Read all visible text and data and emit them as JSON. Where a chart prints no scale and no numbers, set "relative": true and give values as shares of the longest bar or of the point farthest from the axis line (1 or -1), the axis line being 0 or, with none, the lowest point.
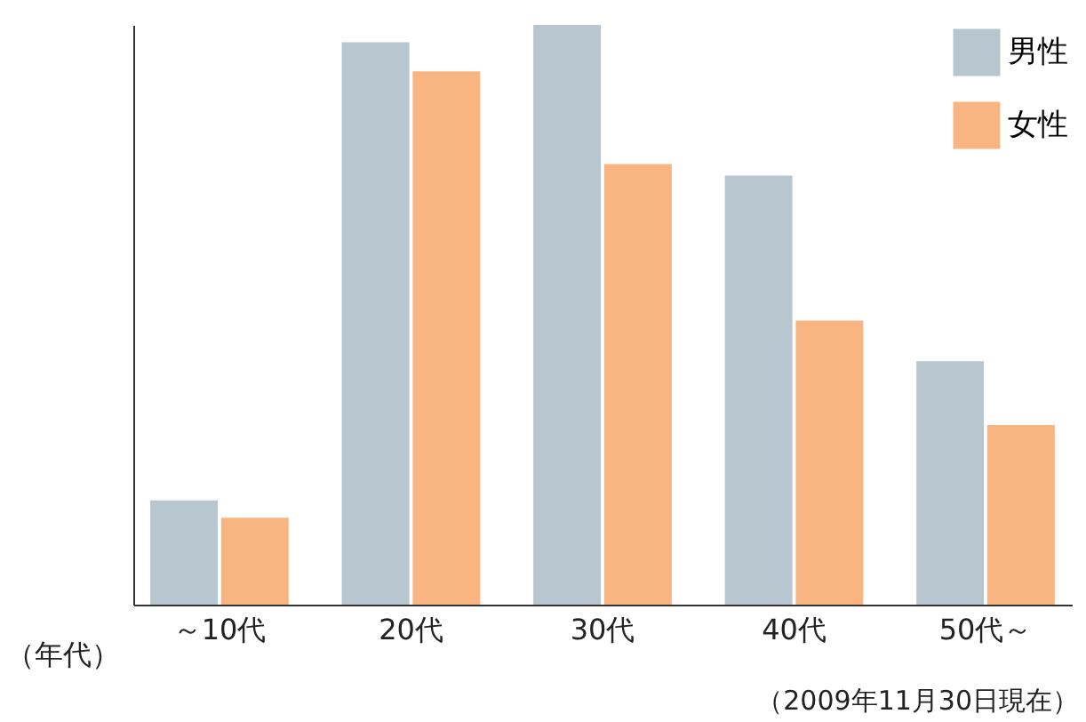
{
  "chart_data": {
    "type": "bar",
    "relative": true,
    "xlabel": "（年代）",
    "categories": [
      "～10代",
      "20代",
      "30代",
      "40代",
      "50代～"
    ],
    "series": [
      {
        "name": "男性",
        "color": "#b8c6cf",
        "values": [
          0.18,
          0.97,
          1,
          0.74,
          0.42
        ]
      },
      {
        "name": "女性",
        "color": "#f9b581",
        "values": [
          0.15,
          0.92,
          0.76,
          0.49,
          0.31
        ]
      }
    ],
    "annotations": [
      "（2009年11月30日現在）"
    ],
    "legend": "top right",
    "grid": false
  }
}
